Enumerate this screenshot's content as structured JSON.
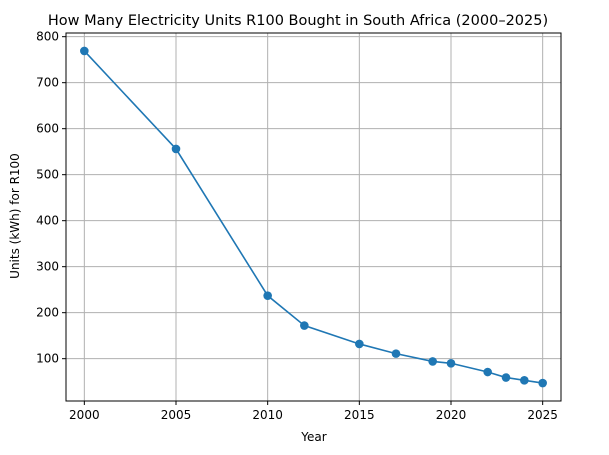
{
  "chart_data": {
    "type": "line",
    "title": "How Many Electricity Units R100 Bought in South Africa (2000–2025)",
    "xlabel": "Year",
    "ylabel": "Units (kWh) for R100",
    "xlim": [
      1999,
      2026
    ],
    "ylim": [
      8,
      808
    ],
    "x_ticks": [
      2000,
      2005,
      2010,
      2015,
      2020,
      2025
    ],
    "y_ticks": [
      100,
      200,
      300,
      400,
      500,
      600,
      700,
      800
    ],
    "grid": true,
    "color": "#1f77b4",
    "series": [
      {
        "marker": "circle",
        "x": [
          2000,
          2005,
          2010,
          2012,
          2015,
          2017,
          2019,
          2020,
          2022,
          2023,
          2024,
          2025
        ],
        "y": [
          769,
          556,
          237,
          172,
          132,
          111,
          94,
          90,
          71,
          59,
          53,
          47
        ]
      }
    ]
  }
}
